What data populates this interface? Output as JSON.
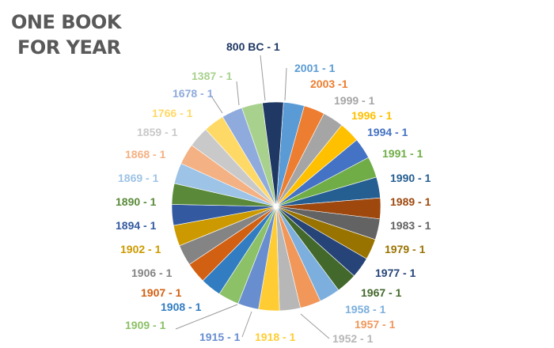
{
  "title_lines": [
    "ONE BOOK",
    "FOR YEAR"
  ],
  "chart_data": {
    "type": "pie",
    "title": "ONE BOOK FOR YEAR",
    "start_category": "800 BC",
    "direction": "clockwise",
    "slices": [
      {
        "label": "2001",
        "value": 1,
        "color": "#5B9BD5"
      },
      {
        "label": "2003",
        "value": 1,
        "color": "#ED7D31"
      },
      {
        "label": "1999",
        "value": 1,
        "color": "#A5A5A5"
      },
      {
        "label": "1996",
        "value": 1,
        "color": "#FFC000"
      },
      {
        "label": "1994",
        "value": 1,
        "color": "#4472C4"
      },
      {
        "label": "1991",
        "value": 1,
        "color": "#70AD47"
      },
      {
        "label": "1990",
        "value": 1,
        "color": "#255E91"
      },
      {
        "label": "1989",
        "value": 1,
        "color": "#9E480E"
      },
      {
        "label": "1983",
        "value": 1,
        "color": "#636363"
      },
      {
        "label": "1979",
        "value": 1,
        "color": "#997300"
      },
      {
        "label": "1977",
        "value": 1,
        "color": "#264478"
      },
      {
        "label": "1967",
        "value": 1,
        "color": "#43682B"
      },
      {
        "label": "1958",
        "value": 1,
        "color": "#7CAFDD"
      },
      {
        "label": "1957",
        "value": 1,
        "color": "#F1975A"
      },
      {
        "label": "1952",
        "value": 1,
        "color": "#B7B7B7"
      },
      {
        "label": "1918",
        "value": 1,
        "color": "#FFCD33"
      },
      {
        "label": "1915",
        "value": 1,
        "color": "#698ED0"
      },
      {
        "label": "1909",
        "value": 1,
        "color": "#8CC168"
      },
      {
        "label": "1908",
        "value": 1,
        "color": "#327DC2"
      },
      {
        "label": "1907",
        "value": 1,
        "color": "#D26012"
      },
      {
        "label": "1906",
        "value": 1,
        "color": "#848484"
      },
      {
        "label": "1902",
        "value": 1,
        "color": "#CC9A00"
      },
      {
        "label": "1894",
        "value": 1,
        "color": "#335AA1"
      },
      {
        "label": "1890",
        "value": 1,
        "color": "#5A8A39"
      },
      {
        "label": "1869",
        "value": 1,
        "color": "#9DC3E6"
      },
      {
        "label": "1868",
        "value": 1,
        "color": "#F4B183"
      },
      {
        "label": "1859",
        "value": 1,
        "color": "#C9C9C9"
      },
      {
        "label": "1766",
        "value": 1,
        "color": "#FFD966"
      },
      {
        "label": "1678",
        "value": 1,
        "color": "#8FAADC"
      },
      {
        "label": "1387",
        "value": 1,
        "color": "#A9D18E"
      },
      {
        "label": "800 BC",
        "value": 1,
        "color": "#203864"
      }
    ],
    "data_labels": {
      "show": true,
      "format": "{label} - {value}",
      "label_color": "slice color"
    },
    "legend": "none"
  },
  "label_overrides": {
    "2003": "2003 -1"
  }
}
